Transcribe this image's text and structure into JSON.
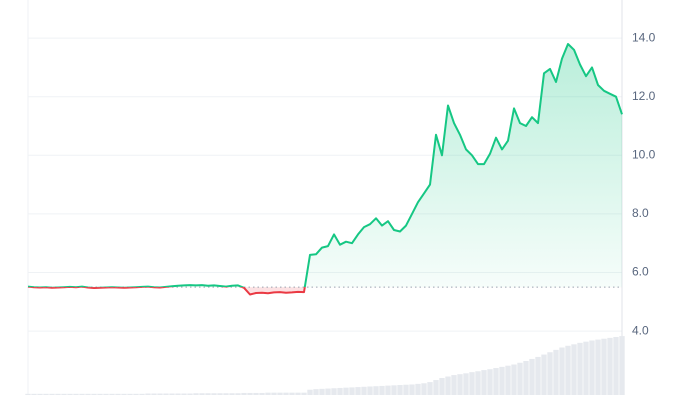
{
  "chart_data": {
    "type": "line",
    "values": [
      5.52,
      5.5,
      5.49,
      5.5,
      5.48,
      5.49,
      5.5,
      5.51,
      5.5,
      5.52,
      5.49,
      5.47,
      5.48,
      5.49,
      5.5,
      5.49,
      5.48,
      5.49,
      5.5,
      5.51,
      5.52,
      5.5,
      5.49,
      5.51,
      5.53,
      5.55,
      5.56,
      5.57,
      5.56,
      5.57,
      5.55,
      5.56,
      5.54,
      5.52,
      5.55,
      5.56,
      5.48,
      5.25,
      5.3,
      5.31,
      5.29,
      5.32,
      5.33,
      5.31,
      5.32,
      5.34,
      5.33,
      6.6,
      6.62,
      6.85,
      6.9,
      7.3,
      6.95,
      7.05,
      7.0,
      7.3,
      7.55,
      7.65,
      7.85,
      7.6,
      7.75,
      7.45,
      7.4,
      7.6,
      8.0,
      8.4,
      8.7,
      9.0,
      10.7,
      10.0,
      11.7,
      11.1,
      10.7,
      10.2,
      10.0,
      9.7,
      9.7,
      10.05,
      10.6,
      10.2,
      10.5,
      11.6,
      11.1,
      11.0,
      11.3,
      11.1,
      12.8,
      12.95,
      12.5,
      13.3,
      13.8,
      13.6,
      13.1,
      12.7,
      13.0,
      12.4,
      12.2,
      12.1,
      12.0,
      11.4
    ],
    "volume": [
      1.86,
      1.86,
      1.86,
      1.86,
      1.86,
      1.86,
      1.86,
      1.86,
      1.86,
      1.86,
      1.86,
      1.86,
      1.86,
      1.86,
      1.86,
      1.86,
      1.86,
      1.86,
      1.86,
      1.86,
      1.87,
      1.87,
      1.87,
      1.87,
      1.87,
      1.87,
      1.87,
      1.87,
      1.88,
      1.88,
      1.88,
      1.88,
      1.88,
      1.88,
      1.88,
      1.88,
      1.89,
      1.89,
      1.89,
      1.89,
      1.9,
      1.9,
      1.9,
      1.9,
      1.9,
      1.9,
      1.9,
      2.0,
      2.02,
      2.03,
      2.04,
      2.05,
      2.06,
      2.07,
      2.08,
      2.09,
      2.1,
      2.11,
      2.12,
      2.13,
      2.14,
      2.15,
      2.16,
      2.17,
      2.18,
      2.2,
      2.22,
      2.26,
      2.33,
      2.4,
      2.45,
      2.5,
      2.53,
      2.56,
      2.6,
      2.63,
      2.67,
      2.7,
      2.74,
      2.78,
      2.82,
      2.86,
      2.92,
      2.98,
      3.05,
      3.12,
      3.2,
      3.28,
      3.36,
      3.44,
      3.5,
      3.55,
      3.6,
      3.64,
      3.68,
      3.71,
      3.74,
      3.77,
      3.8,
      3.83
    ],
    "baseline": 5.5,
    "up_color": "#16c784",
    "down_color": "#ea3943",
    "volume_color": "#e6e9ee",
    "ylim": [
      1.82,
      15.3
    ],
    "yticks": [
      {
        "value": 4,
        "label": "4.0"
      },
      {
        "value": 6,
        "label": "6.0"
      },
      {
        "value": 8,
        "label": "8.0"
      },
      {
        "value": 10,
        "label": "10.0"
      },
      {
        "value": 12,
        "label": "12.0"
      },
      {
        "value": 14,
        "label": "14.0"
      }
    ],
    "grid": true
  }
}
